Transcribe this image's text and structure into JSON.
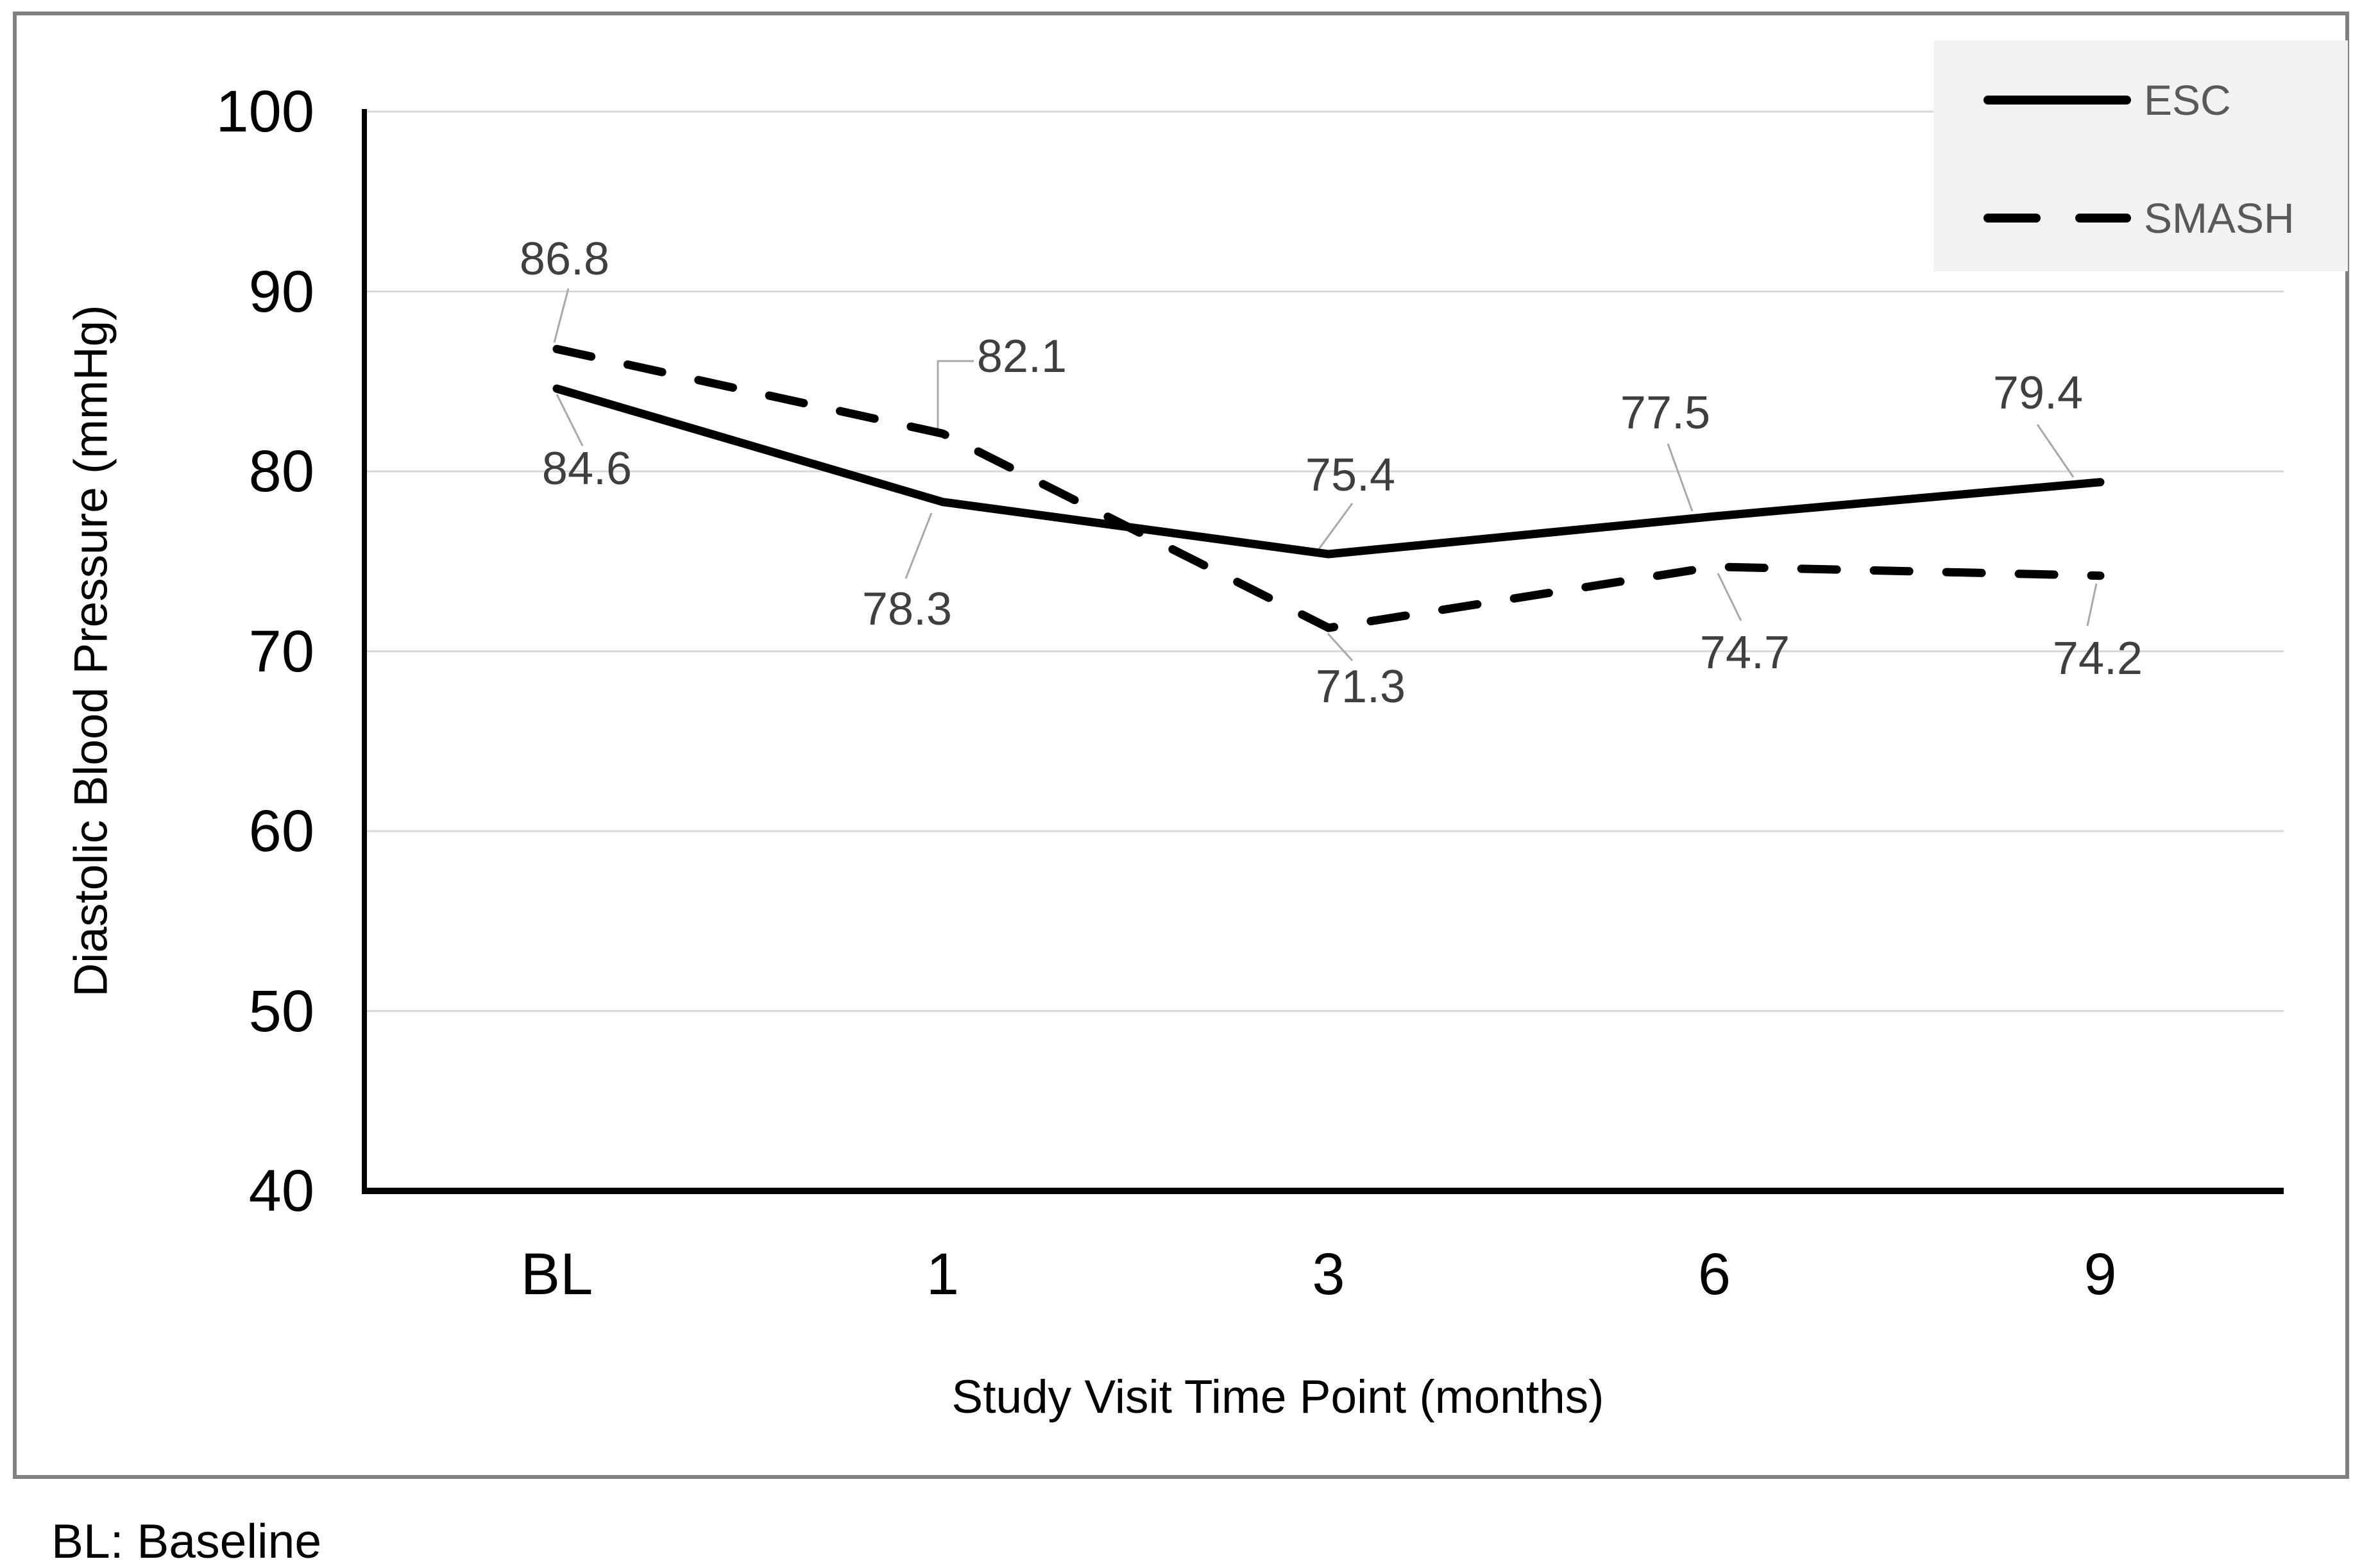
{
  "chart_data": {
    "type": "line",
    "title": "",
    "xlabel": "Study Visit Time Point (months)",
    "ylabel": "Diastolic Blood Pressure (mmHg)",
    "categories": [
      "BL",
      "1",
      "3",
      "6",
      "9"
    ],
    "series": [
      {
        "name": "ESC",
        "style": "solid",
        "values": [
          84.6,
          78.3,
          75.4,
          77.5,
          79.4
        ]
      },
      {
        "name": "SMASH",
        "style": "dashed",
        "values": [
          86.8,
          82.1,
          71.3,
          74.7,
          74.2
        ]
      }
    ],
    "ylim": [
      40,
      100
    ],
    "yticks": [
      100,
      90,
      80,
      70,
      60,
      50,
      40
    ],
    "grid": true,
    "legend_position": "top-right",
    "footnote": "BL: Baseline",
    "colors": {
      "series_line": "#000000",
      "grid": "#d9d9d9",
      "axis": "#000000",
      "data_label": "#3f3f3f",
      "legend_text": "#595959",
      "leader_line": "#a9a9a9",
      "legend_bg": "#f2f2f2",
      "frame_border": "#808080"
    }
  }
}
